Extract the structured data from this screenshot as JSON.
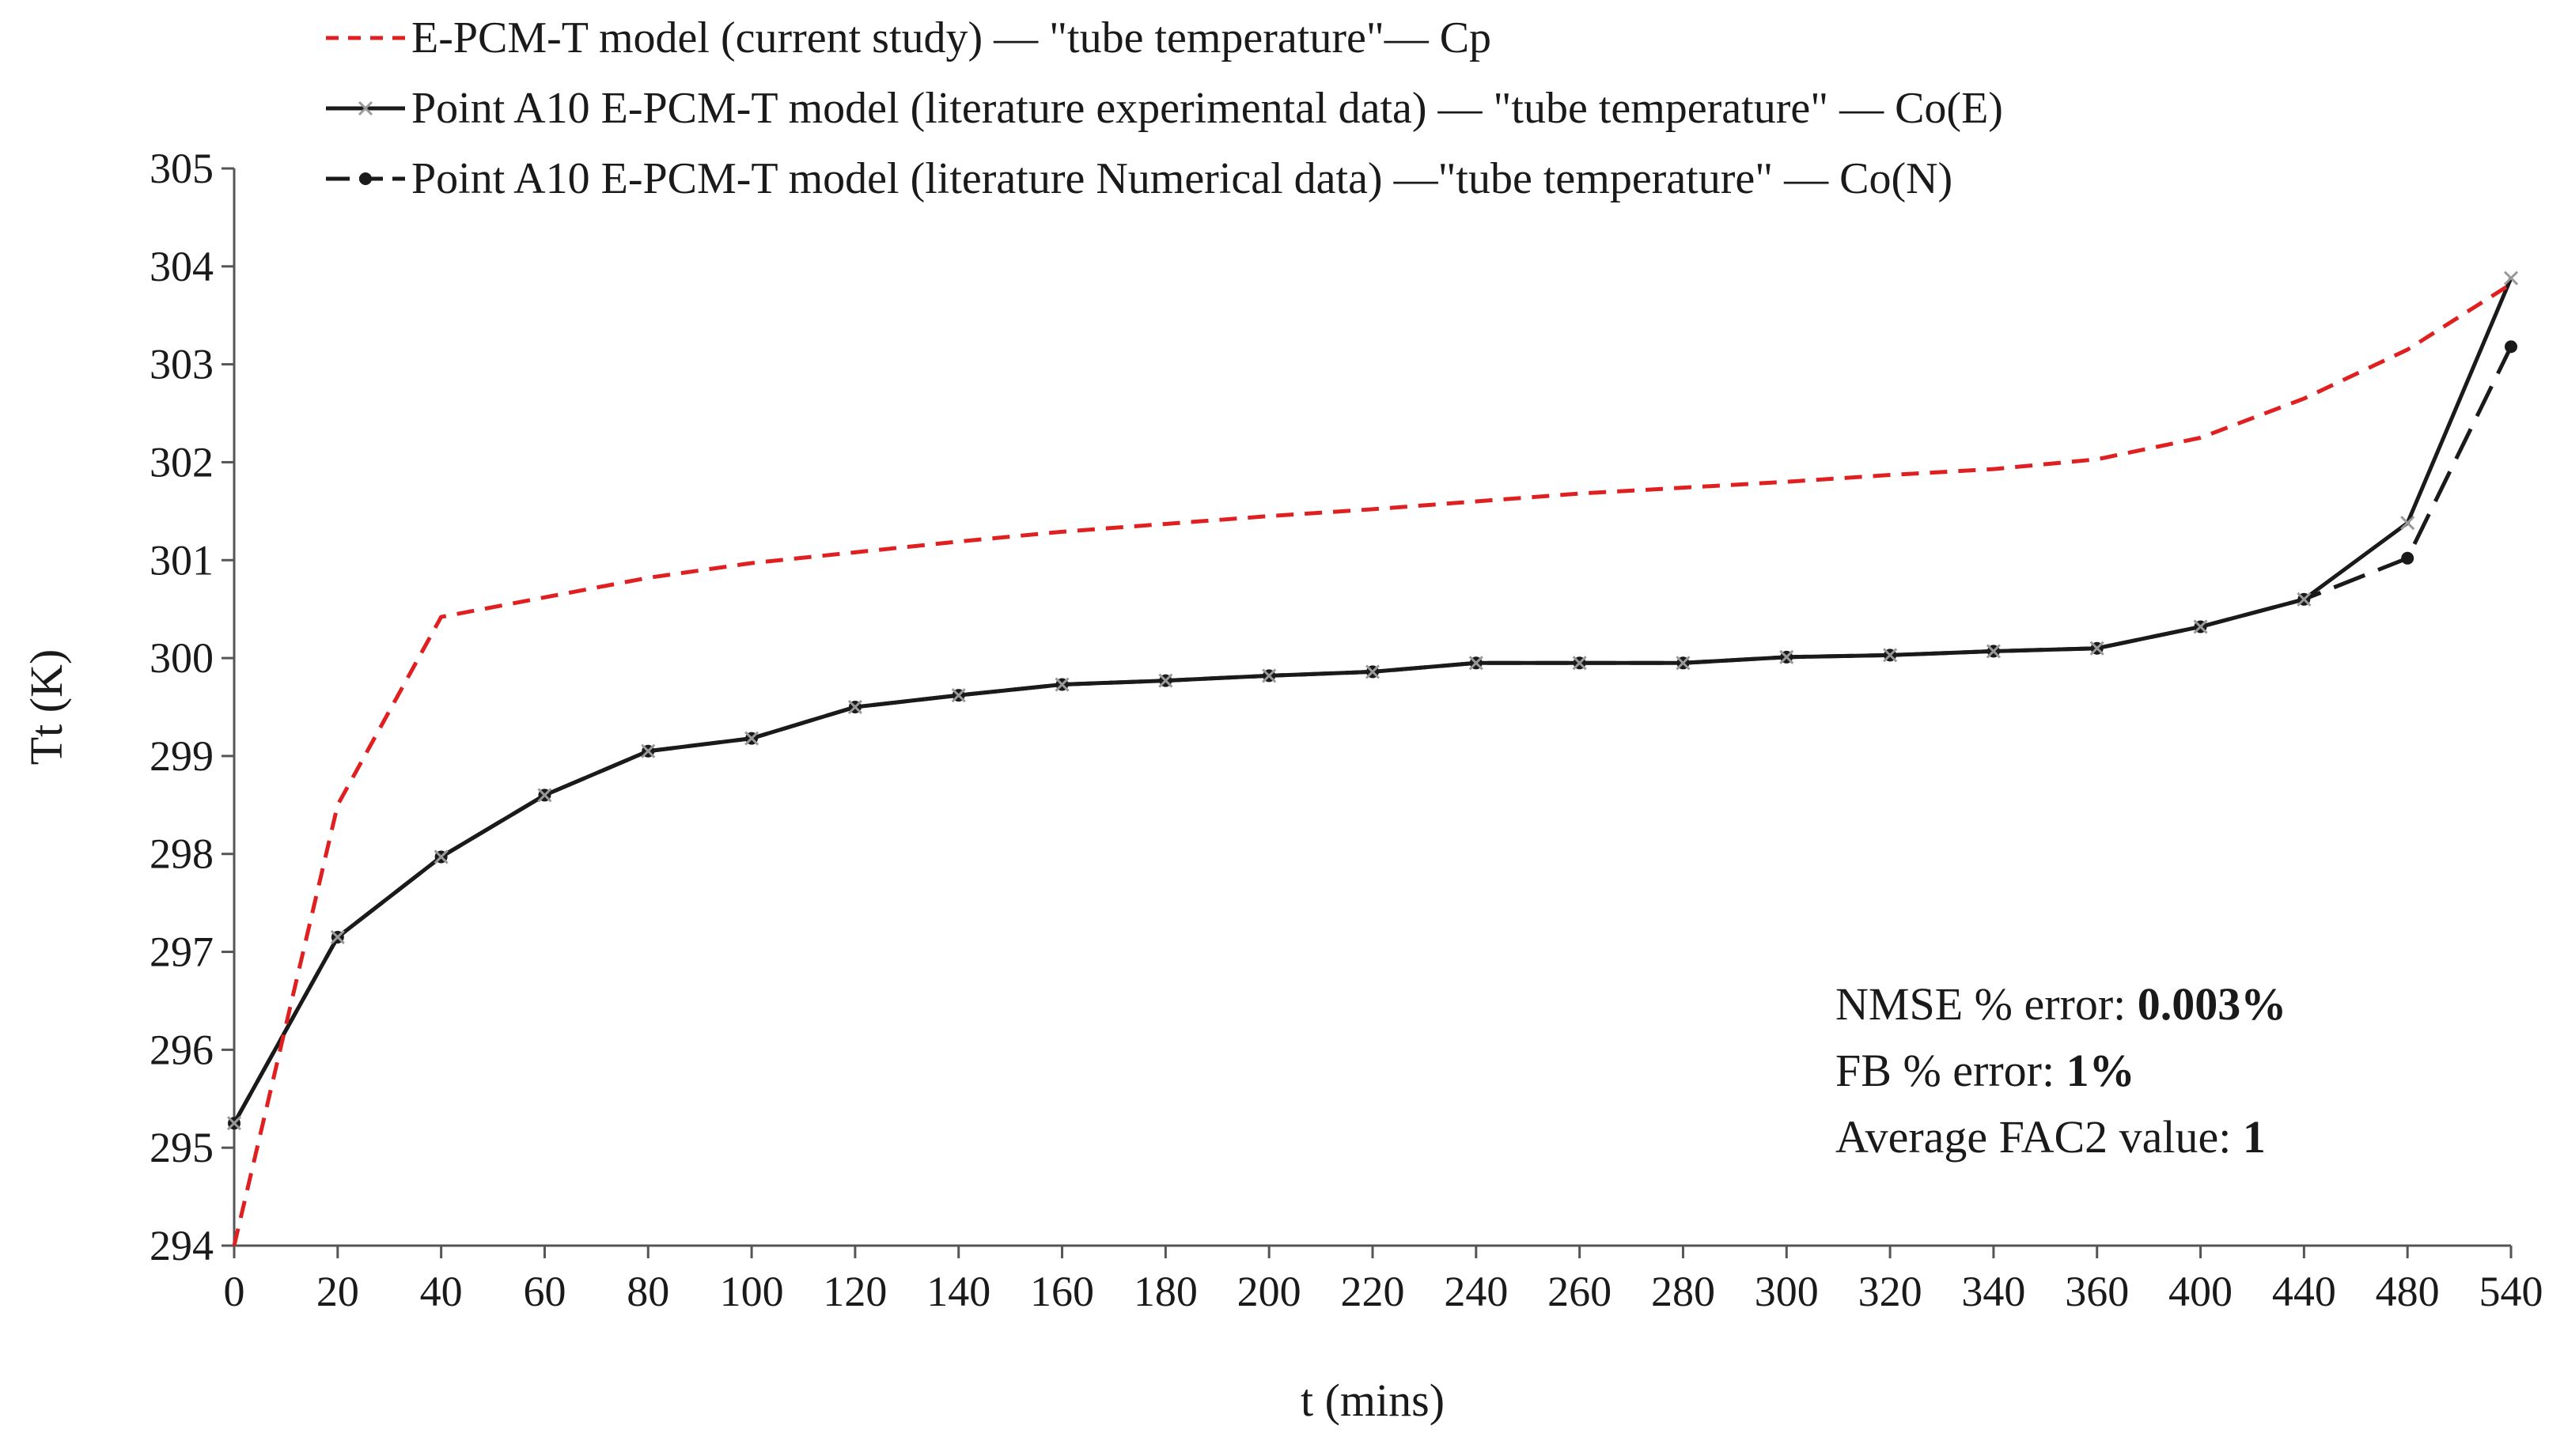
{
  "chart_data": {
    "type": "line",
    "title": "",
    "xlabel": "t (mins)",
    "ylabel": "Tt (K)",
    "ylim": [
      294,
      305
    ],
    "yticks": [
      294,
      295,
      296,
      297,
      298,
      299,
      300,
      301,
      302,
      303,
      304,
      305
    ],
    "categories": [
      "0",
      "20",
      "40",
      "60",
      "80",
      "100",
      "120",
      "140",
      "160",
      "180",
      "200",
      "220",
      "240",
      "260",
      "280",
      "300",
      "320",
      "340",
      "360",
      "400",
      "440",
      "480",
      "540"
    ],
    "grid": false,
    "legend_position": "top",
    "series": [
      {
        "name": "E-PCM-T model (current study) — \"tube temperature\"— Cp",
        "style": "dashed",
        "color": "#e02020",
        "marker": "none",
        "values": [
          294.0,
          298.5,
          300.42,
          300.62,
          300.82,
          300.97,
          301.08,
          301.19,
          301.29,
          301.37,
          301.45,
          301.52,
          301.6,
          301.68,
          301.74,
          301.8,
          301.87,
          301.93,
          302.03,
          302.25,
          302.65,
          303.15,
          303.82
        ]
      },
      {
        "name": "Point A10 E-PCM-T model (literature experimental data) — \"tube temperature\" — Co(E)",
        "style": "solid",
        "color": "#1a1a1a",
        "marker": "x",
        "values": [
          295.25,
          297.15,
          297.97,
          298.6,
          299.05,
          299.18,
          299.5,
          299.62,
          299.73,
          299.77,
          299.82,
          299.86,
          299.95,
          299.95,
          299.95,
          300.01,
          300.03,
          300.07,
          300.1,
          300.32,
          300.6,
          301.38,
          303.88
        ]
      },
      {
        "name": "Point A10 E-PCM-T model (literature Numerical data) —\"tube temperature\" — Co(N)",
        "style": "dashed-long",
        "color": "#1a1a1a",
        "marker": "dot",
        "values": [
          295.25,
          297.15,
          297.97,
          298.6,
          299.05,
          299.18,
          299.5,
          299.62,
          299.73,
          299.77,
          299.82,
          299.86,
          299.95,
          299.95,
          299.95,
          300.01,
          300.03,
          300.07,
          300.1,
          300.32,
          300.6,
          301.02,
          303.18
        ]
      }
    ],
    "annotations": [
      {
        "label": "NMSE % error: ",
        "value": "0.003%"
      },
      {
        "label": "FB % error: ",
        "value": "1%"
      },
      {
        "label": "Average FAC2 value: ",
        "value": "1"
      }
    ]
  }
}
